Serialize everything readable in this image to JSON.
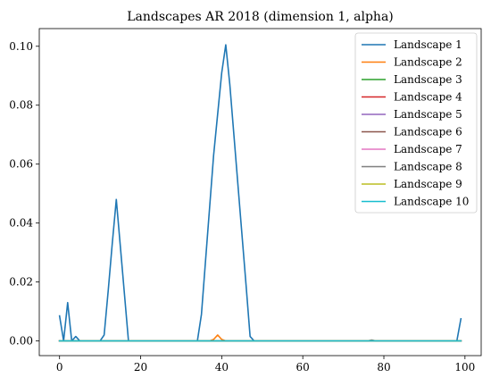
{
  "chart_data": {
    "type": "line",
    "title": "Landscapes AR 2018 (dimension 1, alpha)",
    "xlabel": "",
    "ylabel": "",
    "xlim": [
      -5,
      104
    ],
    "ylim": [
      -0.005,
      0.106
    ],
    "xticks": [
      0,
      20,
      40,
      60,
      80,
      100
    ],
    "xtick_labels": [
      "0",
      "20",
      "40",
      "60",
      "80",
      "100"
    ],
    "yticks": [
      0.0,
      0.02,
      0.04,
      0.06,
      0.08,
      0.1
    ],
    "ytick_labels": [
      "0.00",
      "0.02",
      "0.04",
      "0.06",
      "0.08",
      "0.10"
    ],
    "grid": false,
    "legend_position": "top-right",
    "series": [
      {
        "name": "Landscape 1",
        "color": "#1f77b4",
        "points": [
          [
            0,
            0.0085
          ],
          [
            1,
            0.0
          ],
          [
            2,
            0.013
          ],
          [
            3,
            0.0
          ],
          [
            4,
            0.0015
          ],
          [
            5,
            0.0
          ],
          [
            10,
            0.0
          ],
          [
            11,
            0.002
          ],
          [
            12,
            0.017
          ],
          [
            13,
            0.033
          ],
          [
            14,
            0.048
          ],
          [
            15,
            0.032
          ],
          [
            16,
            0.016
          ],
          [
            17,
            0.0
          ],
          [
            34,
            0.0
          ],
          [
            35,
            0.009
          ],
          [
            36,
            0.027
          ],
          [
            37,
            0.045
          ],
          [
            38,
            0.063
          ],
          [
            39,
            0.077
          ],
          [
            40,
            0.091
          ],
          [
            41,
            0.1005
          ],
          [
            42,
            0.087
          ],
          [
            43,
            0.07
          ],
          [
            44,
            0.053
          ],
          [
            45,
            0.036
          ],
          [
            46,
            0.019
          ],
          [
            47,
            0.0015
          ],
          [
            48,
            0.0
          ],
          [
            98,
            0.0
          ],
          [
            99,
            0.0075
          ]
        ]
      },
      {
        "name": "Landscape 2",
        "color": "#ff7f0e",
        "points": [
          [
            0,
            0.0
          ],
          [
            37,
            0.0
          ],
          [
            38,
            0.0005
          ],
          [
            39,
            0.002
          ],
          [
            40,
            0.0005
          ],
          [
            41,
            0.0
          ],
          [
            99,
            0.0
          ]
        ]
      },
      {
        "name": "Landscape 3",
        "color": "#2ca02c",
        "points": [
          [
            0,
            0.0
          ],
          [
            99,
            0.0
          ]
        ]
      },
      {
        "name": "Landscape 4",
        "color": "#d62728",
        "points": [
          [
            0,
            0.0
          ],
          [
            99,
            0.0
          ]
        ]
      },
      {
        "name": "Landscape 5",
        "color": "#9467bd",
        "points": [
          [
            0,
            0.0
          ],
          [
            99,
            0.0
          ]
        ]
      },
      {
        "name": "Landscape 6",
        "color": "#8c564b",
        "points": [
          [
            0,
            0.0
          ],
          [
            99,
            0.0
          ]
        ]
      },
      {
        "name": "Landscape 7",
        "color": "#e377c2",
        "points": [
          [
            0,
            0.0
          ],
          [
            99,
            0.0
          ]
        ]
      },
      {
        "name": "Landscape 8",
        "color": "#7f7f7f",
        "points": [
          [
            0,
            0.0
          ],
          [
            76,
            0.0
          ],
          [
            77,
            0.0003
          ],
          [
            78,
            0.0
          ],
          [
            99,
            0.0
          ]
        ]
      },
      {
        "name": "Landscape 9",
        "color": "#bcbd22",
        "points": [
          [
            0,
            0.0
          ],
          [
            99,
            0.0
          ]
        ]
      },
      {
        "name": "Landscape 10",
        "color": "#17becf",
        "points": [
          [
            0,
            0.0
          ],
          [
            99,
            0.0
          ]
        ]
      }
    ]
  }
}
